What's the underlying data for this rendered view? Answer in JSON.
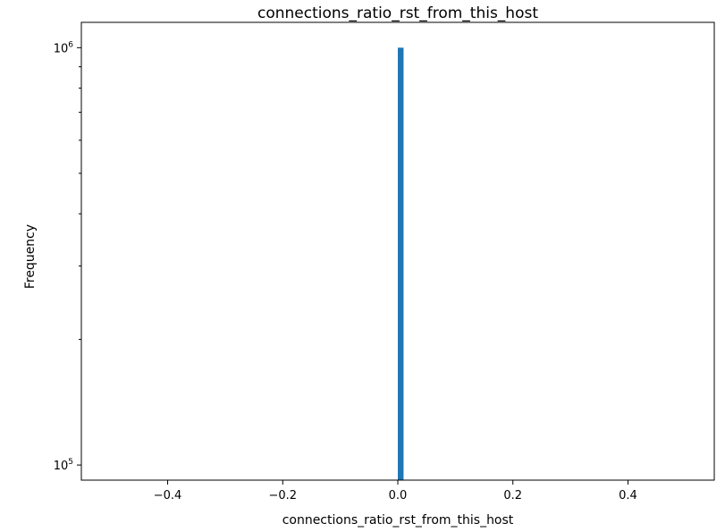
{
  "chart_data": {
    "type": "bar",
    "title": "connections_ratio_rst_from_this_host",
    "xlabel": "connections_ratio_rst_from_this_host",
    "ylabel": "Frequency",
    "xlim": [
      -0.55,
      0.55
    ],
    "ylim": [
      92000,
      1150000
    ],
    "yscale": "log",
    "grid": false,
    "x_ticks": [
      {
        "value": -0.4,
        "label": "−0.4"
      },
      {
        "value": -0.2,
        "label": "−0.2"
      },
      {
        "value": 0.0,
        "label": "0.0"
      },
      {
        "value": 0.2,
        "label": "0.2"
      },
      {
        "value": 0.4,
        "label": "0.4"
      }
    ],
    "y_major_ticks": [
      {
        "value": 100000,
        "base": "10",
        "exponent": "5"
      },
      {
        "value": 1000000,
        "base": "10",
        "exponent": "6"
      }
    ],
    "y_minor_ticks": [
      200000,
      300000,
      400000,
      500000,
      600000,
      700000,
      800000,
      900000
    ],
    "bars": [
      {
        "x_start": 0.0,
        "x_end": 0.01,
        "value": 1000000
      }
    ],
    "colors": {
      "bar": "#1f77b4",
      "axes": "#000000",
      "background": "#ffffff"
    }
  }
}
